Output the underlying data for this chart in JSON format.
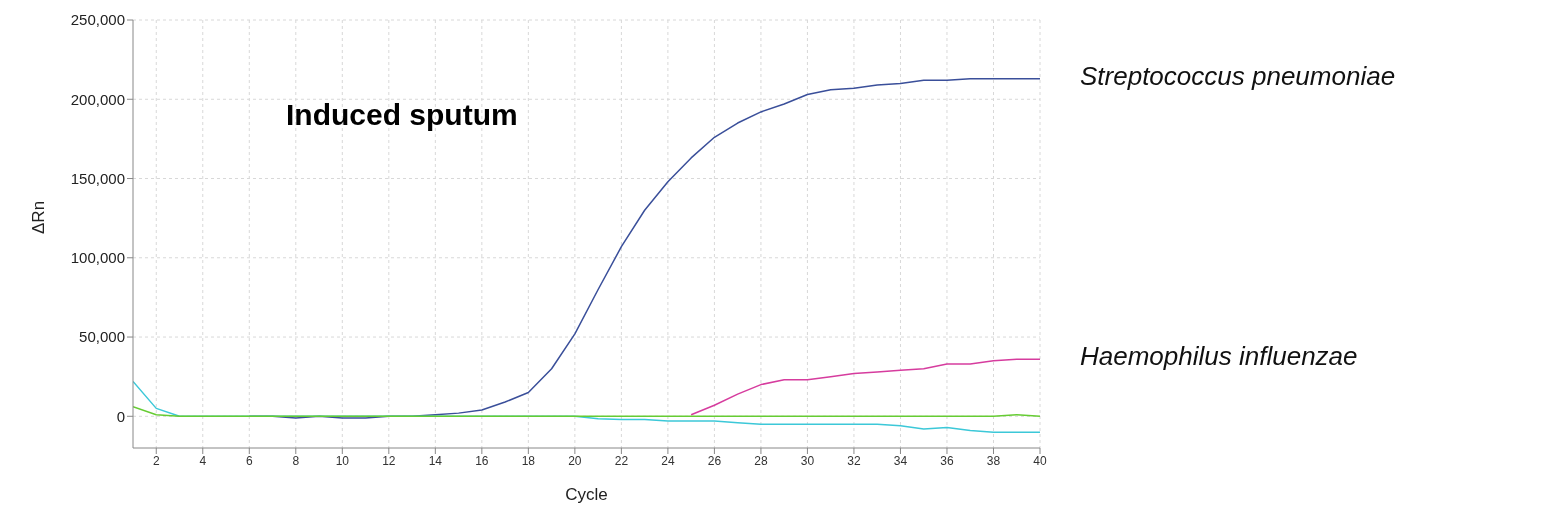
{
  "chart_data": {
    "type": "line",
    "title": "Induced sputum",
    "xlabel": "Cycle",
    "ylabel": "ΔRn",
    "x": [
      1,
      2,
      3,
      4,
      5,
      6,
      7,
      8,
      9,
      10,
      11,
      12,
      13,
      14,
      15,
      16,
      17,
      18,
      19,
      20,
      21,
      22,
      23,
      24,
      25,
      26,
      27,
      28,
      29,
      30,
      31,
      32,
      33,
      34,
      35,
      36,
      37,
      38,
      39,
      40
    ],
    "series": [
      {
        "name": "Streptococcus pneumoniae",
        "color": "#3a4f9a",
        "values": [
          null,
          null,
          null,
          null,
          null,
          0,
          0,
          -1000,
          0,
          -1000,
          -1000,
          0,
          0,
          1000,
          2000,
          4000,
          9000,
          15000,
          30000,
          52000,
          80000,
          107000,
          130000,
          148000,
          163000,
          176000,
          185000,
          192000,
          197000,
          203000,
          206000,
          207000,
          209000,
          210000,
          212000,
          212000,
          213000,
          213000,
          213000,
          213000
        ]
      },
      {
        "name": "Haemophilus influenzae",
        "color": "#d63c9e",
        "values": [
          null,
          null,
          null,
          null,
          null,
          null,
          null,
          null,
          null,
          null,
          null,
          null,
          null,
          null,
          null,
          null,
          null,
          null,
          null,
          null,
          null,
          null,
          null,
          null,
          1000,
          7000,
          14000,
          20000,
          23000,
          23000,
          25000,
          27000,
          28000,
          29000,
          30000,
          33000,
          33000,
          35000,
          36000,
          36000
        ]
      },
      {
        "color": "#3cc8d8",
        "values": [
          22000,
          5000,
          0,
          0,
          0,
          0,
          0,
          0,
          0,
          0,
          0,
          0,
          0,
          0,
          0,
          0,
          0,
          0,
          0,
          0,
          -1500,
          -2000,
          -2000,
          -3000,
          -3000,
          -3000,
          -4000,
          -5000,
          -5000,
          -5000,
          -5000,
          -5000,
          -5000,
          -6000,
          -8000,
          -7000,
          -9000,
          -10000,
          -10000,
          -10000
        ]
      },
      {
        "color": "#66cc33",
        "values": [
          6000,
          1000,
          0,
          0,
          0,
          0,
          0,
          0,
          0,
          0,
          0,
          0,
          0,
          0,
          0,
          0,
          0,
          0,
          0,
          0,
          0,
          0,
          0,
          0,
          0,
          0,
          0,
          0,
          0,
          0,
          0,
          0,
          0,
          0,
          0,
          0,
          0,
          0,
          1000,
          0
        ]
      }
    ],
    "xlim": [
      1,
      40
    ],
    "xticks": [
      2,
      4,
      6,
      8,
      10,
      12,
      14,
      16,
      18,
      20,
      22,
      24,
      26,
      28,
      30,
      32,
      34,
      36,
      38,
      40
    ],
    "ylim": [
      -20000,
      250000
    ],
    "yticks": [
      {
        "value": 0,
        "label": "0"
      },
      {
        "value": 50000,
        "label": "50,000"
      },
      {
        "value": 100000,
        "label": "100,000"
      },
      {
        "value": 150000,
        "label": "150,000"
      },
      {
        "value": 200000,
        "label": "200,000"
      },
      {
        "value": 250000,
        "label": "250,000"
      }
    ],
    "grid": true,
    "marker": "none",
    "line_style": "solid"
  }
}
